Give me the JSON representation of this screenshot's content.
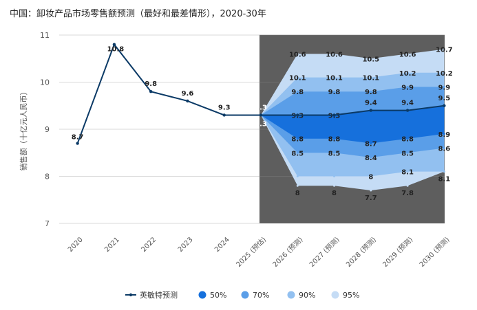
{
  "chart_data": {
    "type": "line",
    "title": "中国：卸妆产品市场零售额预测（最好和最差情形），2020-30年",
    "ylabel": "销售额（十亿元人民币）",
    "xlabel": "",
    "ylim": [
      7,
      11
    ],
    "yticks": [
      "7",
      "8",
      "9",
      "10",
      "11"
    ],
    "categories": [
      "2020",
      "2021",
      "2022",
      "2023",
      "2024",
      "2025 (预估)",
      "2026 (预测)",
      "2027 (预测)",
      "2028 (预测)",
      "2029 (预测)",
      "2030 (预测)"
    ],
    "forecast_region_start": "2025 (预估)",
    "series": [
      {
        "name": "英敏特预测",
        "values": [
          8.7,
          10.8,
          9.8,
          9.6,
          9.3,
          9.3,
          9.3,
          9.3,
          9.4,
          9.4,
          9.5
        ],
        "labels": [
          "8.7",
          "10.8",
          "9.8",
          "9.6",
          "9.3",
          "9.3",
          "9.3",
          "9.3",
          "9.4",
          "9.4",
          "9.5"
        ],
        "color": "#0b3a66"
      }
    ],
    "bands": [
      {
        "name": "95%",
        "color": "#c5dcf5",
        "upper": [
          9.3,
          10.6,
          10.6,
          10.5,
          10.6,
          10.7
        ],
        "lower": [
          9.3,
          7.8,
          7.8,
          7.7,
          7.8,
          8.1
        ],
        "upper_labels": [
          "10.6",
          "10.6",
          "10.5",
          "10.6",
          "10.7"
        ],
        "lower_labels": [
          "8",
          "8",
          "7.7",
          "7.8",
          "8.1"
        ]
      },
      {
        "name": "90%",
        "color": "#92c0f0",
        "upper": [
          9.3,
          10.1,
          10.1,
          10.1,
          10.2,
          10.2
        ],
        "lower": [
          9.3,
          8.0,
          8.0,
          8.0,
          8.1,
          8.1
        ],
        "upper_labels": [
          "10.1",
          "10.1",
          "10.1",
          "10.2",
          "10.2"
        ],
        "lower_labels": [
          "",
          "",
          "8",
          "8.1",
          ""
        ]
      },
      {
        "name": "70%",
        "color": "#5a9ee8",
        "upper": [
          9.3,
          9.8,
          9.8,
          9.8,
          9.9,
          9.9
        ],
        "lower": [
          9.3,
          8.5,
          8.5,
          8.4,
          8.5,
          8.6
        ],
        "upper_labels": [
          "9.8",
          "9.8",
          "9.8",
          "9.9",
          "9.9"
        ],
        "lower_labels": [
          "8.5",
          "8.5",
          "8.4",
          "8.5",
          "8.6"
        ]
      },
      {
        "name": "50%",
        "color": "#1670dc",
        "upper": [
          9.3,
          9.3,
          9.3,
          9.4,
          9.4,
          9.5
        ],
        "lower": [
          9.3,
          8.8,
          8.8,
          8.7,
          8.8,
          8.9
        ],
        "upper_labels": [
          "9.3",
          "9.3",
          "",
          "",
          ""
        ],
        "lower_labels": [
          "8.8",
          "8.8",
          "8.7",
          "8.8",
          "8.9"
        ]
      }
    ],
    "extra_point_label": "9.3",
    "legend_position": "bottom",
    "grid": true,
    "colors": {
      "forecast_background": "#5e5e5e",
      "gridline": "#d9d9d9",
      "axis_text": "#555555"
    }
  },
  "legend": {
    "items": [
      {
        "label": "英敏特预测",
        "color": "#0b3a66",
        "marker": "line"
      },
      {
        "label": "50%",
        "color": "#1670dc",
        "marker": "dot"
      },
      {
        "label": "70%",
        "color": "#5a9ee8",
        "marker": "dot"
      },
      {
        "label": "90%",
        "color": "#92c0f0",
        "marker": "dot"
      },
      {
        "label": "95%",
        "color": "#c5dcf5",
        "marker": "dot"
      }
    ]
  }
}
